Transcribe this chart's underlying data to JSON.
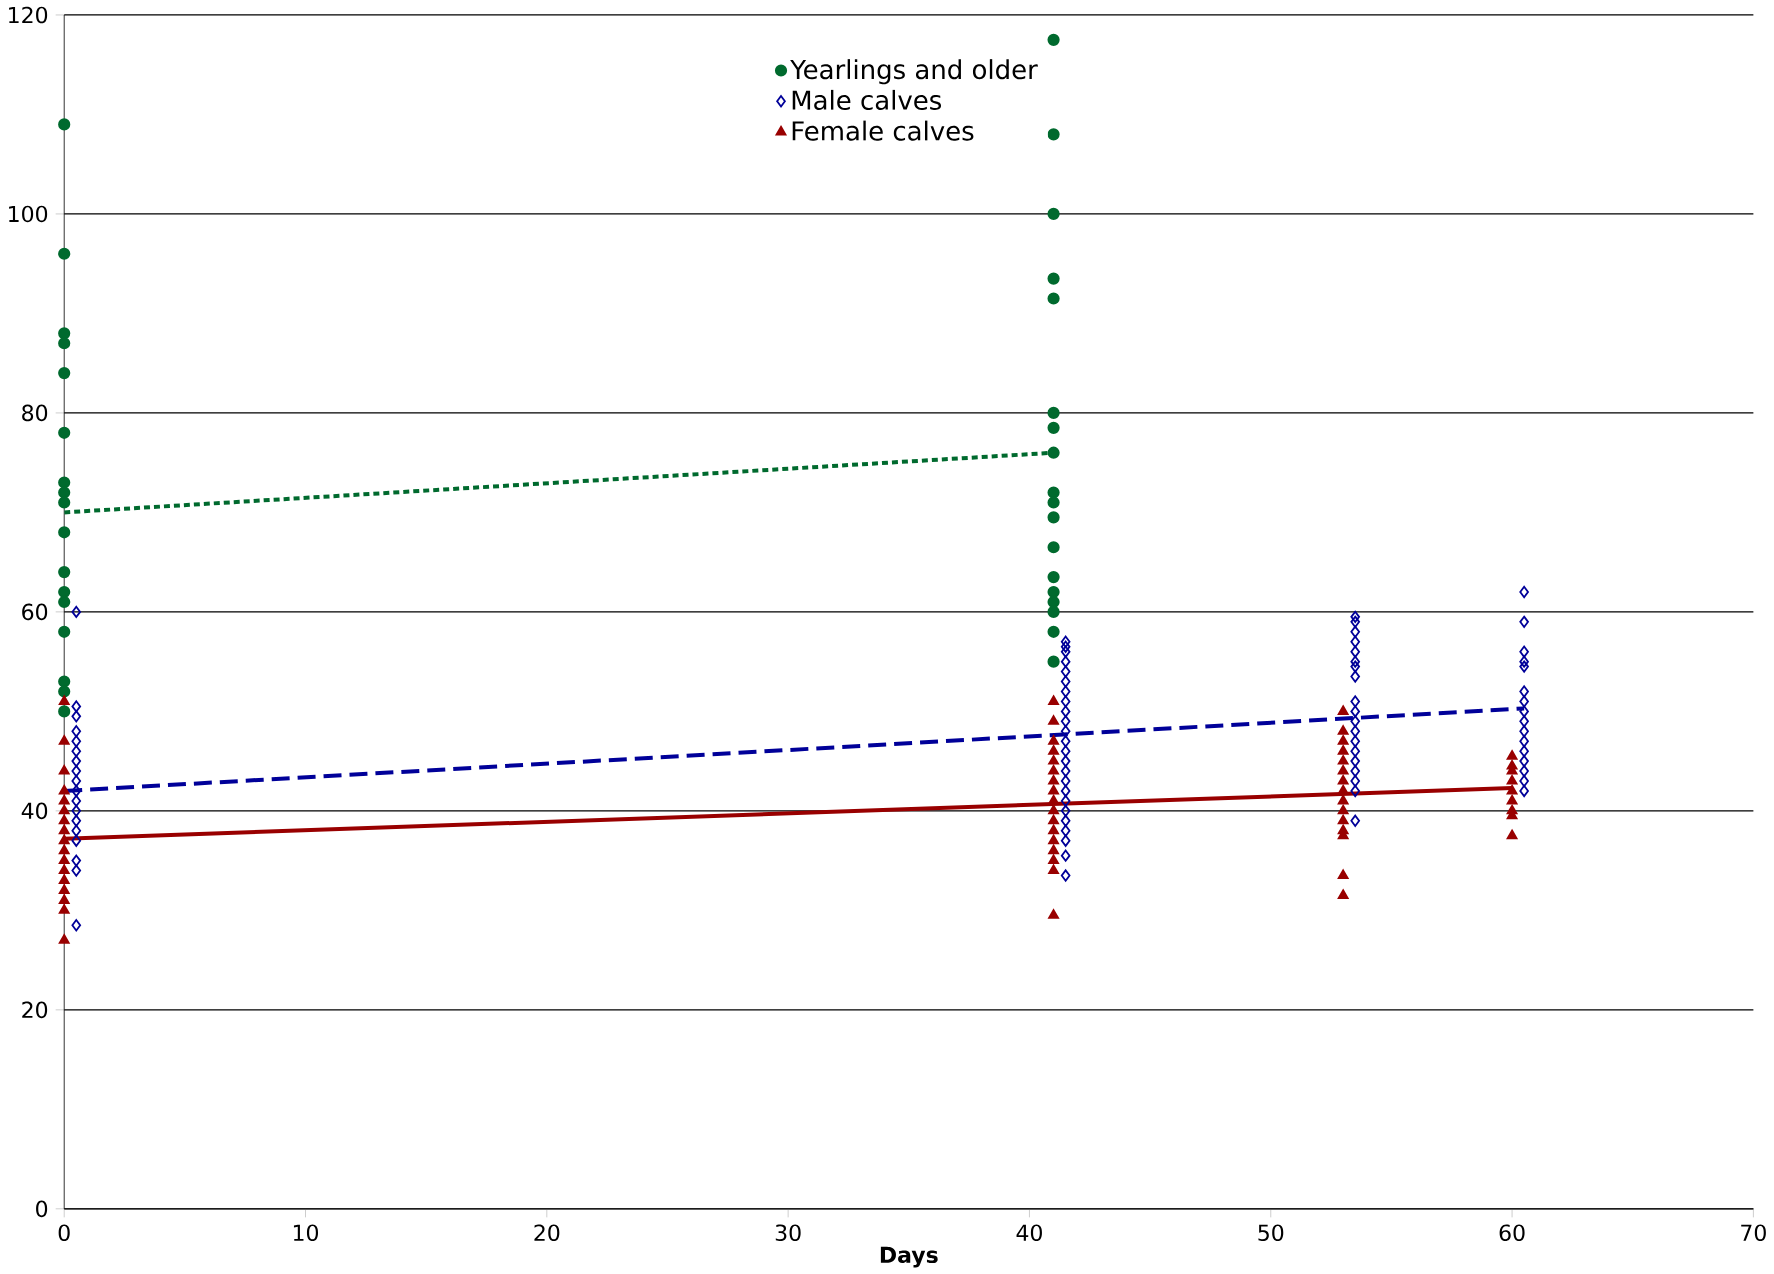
{
  "chart_data": {
    "type": "scatter",
    "xlabel": "Days",
    "xlim": [
      0,
      70
    ],
    "ylim": [
      0,
      120
    ],
    "xticks": [
      0,
      10,
      20,
      30,
      40,
      50,
      60,
      70
    ],
    "yticks": [
      0,
      20,
      40,
      60,
      80,
      100,
      120
    ],
    "grid": "y",
    "legend": "top",
    "series": [
      {
        "name": "Yearlings and older",
        "color": "#006A2E",
        "marker": "circle",
        "x": [
          0,
          0,
          0,
          0,
          0,
          0,
          0,
          0,
          0,
          0,
          0,
          0,
          0,
          0,
          0,
          0,
          0,
          41,
          41,
          41,
          41,
          41,
          41,
          41,
          41,
          41,
          41,
          41,
          41,
          41,
          41,
          41,
          41,
          41,
          41
        ],
        "values": [
          109,
          96,
          88,
          87,
          84,
          78,
          73,
          72,
          71,
          68,
          64,
          62,
          61,
          58,
          53,
          52,
          50,
          117.5,
          108,
          100,
          93.5,
          91.5,
          80,
          78.5,
          76,
          72,
          71,
          69.5,
          66.5,
          63.5,
          62,
          61,
          60,
          58,
          55
        ]
      },
      {
        "name": "Male calves",
        "color": "#000099",
        "marker": "diamond",
        "x": [
          0.5,
          0.5,
          0.5,
          0.5,
          0.5,
          0.5,
          0.5,
          0.5,
          0.5,
          0.5,
          0.5,
          0.5,
          0.5,
          0.5,
          0.5,
          0.5,
          0.5,
          0.5,
          41.5,
          41.5,
          41.5,
          41.5,
          41.5,
          41.5,
          41.5,
          41.5,
          41.5,
          41.5,
          41.5,
          41.5,
          41.5,
          41.5,
          41.5,
          41.5,
          41.5,
          41.5,
          41.5,
          41.5,
          41.5,
          41.5,
          41.5,
          41.5,
          53.5,
          53.5,
          53.5,
          53.5,
          53.5,
          53.5,
          53.5,
          53.5,
          53.5,
          53.5,
          53.5,
          53.5,
          53.5,
          53.5,
          53.5,
          53.5,
          53.5,
          53.5,
          53.5,
          60.5,
          60.5,
          60.5,
          60.5,
          60.5,
          60.5,
          60.5,
          60.5,
          60.5,
          60.5,
          60.5,
          60.5,
          60.5,
          60.5,
          60.5,
          60.5
        ],
        "values": [
          60,
          50.5,
          49.5,
          48,
          47,
          46,
          45,
          44,
          43,
          42,
          41,
          40,
          39,
          38,
          37,
          35,
          34,
          28.5,
          57,
          56.5,
          56,
          55,
          54,
          53,
          52,
          51,
          50,
          49,
          48,
          47,
          46,
          45,
          44,
          43,
          42,
          41,
          40,
          39,
          38,
          37,
          35.5,
          33.5,
          59.5,
          59,
          58,
          57,
          56,
          55,
          54.5,
          53.5,
          51,
          50,
          49,
          48,
          47,
          46,
          45,
          44,
          43,
          42,
          39,
          62,
          59,
          56,
          55,
          54.5,
          52,
          51,
          50,
          49,
          48,
          47,
          46,
          45,
          44,
          43,
          42
        ]
      },
      {
        "name": "Female calves",
        "color": "#990000",
        "marker": "triangle",
        "x": [
          0,
          0,
          0,
          0,
          0,
          0,
          0,
          0,
          0,
          0,
          0,
          0,
          0,
          0,
          0,
          0,
          0,
          41,
          41,
          41,
          41,
          41,
          41,
          41,
          41,
          41,
          41,
          41,
          41,
          41,
          41,
          41,
          41,
          41,
          53,
          53,
          53,
          53,
          53,
          53,
          53,
          53,
          53,
          53,
          53,
          53,
          53,
          53,
          53,
          60,
          60,
          60,
          60,
          60,
          60,
          60,
          60,
          60
        ],
        "values": [
          51,
          47,
          44,
          42,
          41,
          40,
          39,
          38,
          37,
          36,
          35,
          34,
          33,
          32,
          31,
          30,
          27,
          51,
          49,
          47,
          46,
          45,
          44,
          43,
          42,
          41,
          40,
          39,
          38,
          37,
          36,
          35,
          34,
          29.5,
          50,
          48,
          47,
          46,
          45,
          44,
          43,
          42,
          41,
          40,
          39,
          38,
          37.5,
          33.5,
          31.5,
          45.5,
          44.5,
          44,
          43,
          42,
          41,
          40,
          39.5,
          37.5
        ]
      },
      {
        "type": "line",
        "color": "#006A2E",
        "line_style": "dotted",
        "x": [
          0,
          41
        ],
        "values": [
          70,
          76
        ]
      },
      {
        "type": "line",
        "color": "#000099",
        "line_style": "dashed",
        "x": [
          0,
          60.5
        ],
        "values": [
          42,
          50.3
        ]
      },
      {
        "type": "line",
        "color": "#990000",
        "line_style": "solid",
        "x": [
          0,
          60
        ],
        "values": [
          37.2,
          42.3
        ]
      }
    ]
  }
}
